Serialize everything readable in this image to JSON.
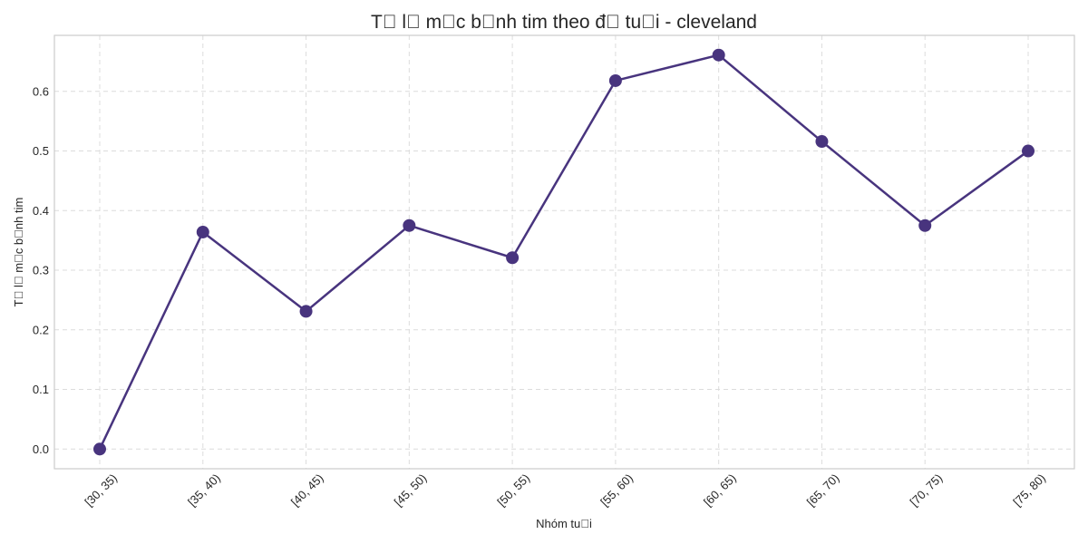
{
  "chart_data": {
    "type": "line",
    "title": "T\u0000 l\u0000 m\u0000c b\u0000nh tim theo đ\u0000 tu\u0000i - cleveland",
    "xlabel": "Nhóm tu\u0000i",
    "ylabel": "T\u0000 l\u0000 m\u0000c b\u0000nh tim",
    "categories": [
      "[30, 35)",
      "[35, 40)",
      "[40, 45)",
      "[45, 50)",
      "[50, 55)",
      "[55, 60)",
      "[60, 65)",
      "[65, 70)",
      "[70, 75)",
      "[75, 80)"
    ],
    "series": [
      {
        "values": [
          0.0,
          0.364,
          0.231,
          0.375,
          0.321,
          0.618,
          0.661,
          0.516,
          0.375,
          0.5
        ],
        "color": "#48347e"
      }
    ],
    "yticks": [
      0.0,
      0.1,
      0.2,
      0.3,
      0.4,
      0.5,
      0.6
    ],
    "ytick_labels": [
      "0.0",
      "0.1",
      "0.2",
      "0.3",
      "0.4",
      "0.5",
      "0.6"
    ],
    "ylim": [
      -0.033,
      0.694
    ],
    "grid": true,
    "legend": "none"
  }
}
